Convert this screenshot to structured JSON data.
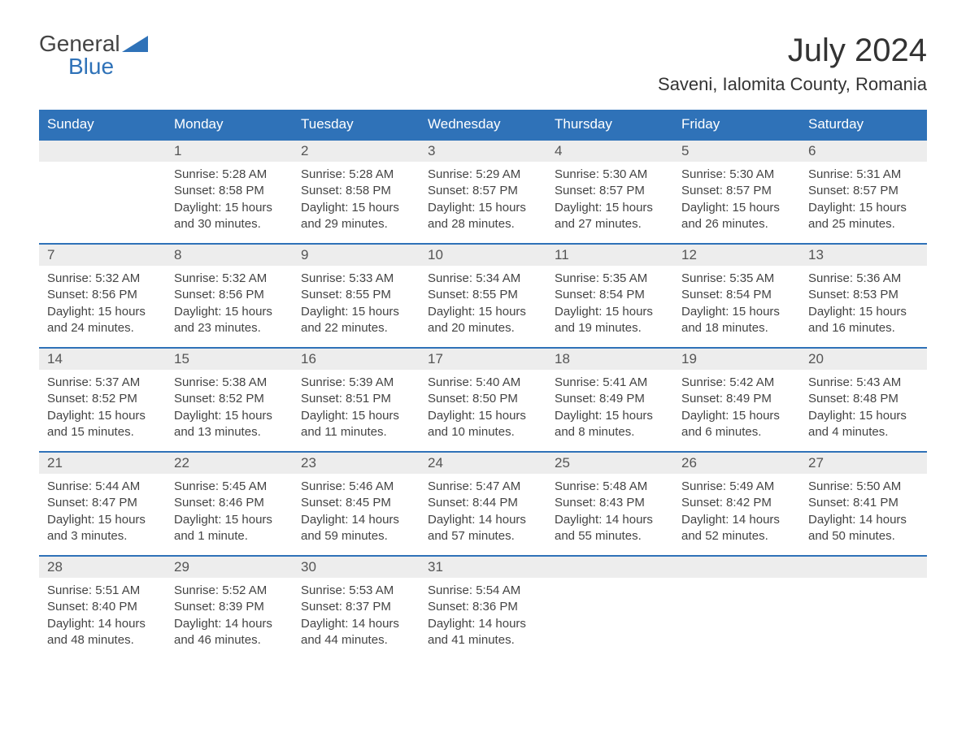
{
  "logo": {
    "line1": "General",
    "line2": "Blue"
  },
  "title": "July 2024",
  "location": "Saveni, Ialomita County, Romania",
  "colors": {
    "header_bg": "#2f72b8",
    "header_text": "#ffffff",
    "daynum_bg": "#ededed",
    "border_top": "#2f72b8",
    "text": "#444444",
    "logo_blue": "#2f72b8"
  },
  "weekdays": [
    "Sunday",
    "Monday",
    "Tuesday",
    "Wednesday",
    "Thursday",
    "Friday",
    "Saturday"
  ],
  "weeks": [
    [
      null,
      {
        "n": "1",
        "sr": "Sunrise: 5:28 AM",
        "ss": "Sunset: 8:58 PM",
        "d1": "Daylight: 15 hours",
        "d2": "and 30 minutes."
      },
      {
        "n": "2",
        "sr": "Sunrise: 5:28 AM",
        "ss": "Sunset: 8:58 PM",
        "d1": "Daylight: 15 hours",
        "d2": "and 29 minutes."
      },
      {
        "n": "3",
        "sr": "Sunrise: 5:29 AM",
        "ss": "Sunset: 8:57 PM",
        "d1": "Daylight: 15 hours",
        "d2": "and 28 minutes."
      },
      {
        "n": "4",
        "sr": "Sunrise: 5:30 AM",
        "ss": "Sunset: 8:57 PM",
        "d1": "Daylight: 15 hours",
        "d2": "and 27 minutes."
      },
      {
        "n": "5",
        "sr": "Sunrise: 5:30 AM",
        "ss": "Sunset: 8:57 PM",
        "d1": "Daylight: 15 hours",
        "d2": "and 26 minutes."
      },
      {
        "n": "6",
        "sr": "Sunrise: 5:31 AM",
        "ss": "Sunset: 8:57 PM",
        "d1": "Daylight: 15 hours",
        "d2": "and 25 minutes."
      }
    ],
    [
      {
        "n": "7",
        "sr": "Sunrise: 5:32 AM",
        "ss": "Sunset: 8:56 PM",
        "d1": "Daylight: 15 hours",
        "d2": "and 24 minutes."
      },
      {
        "n": "8",
        "sr": "Sunrise: 5:32 AM",
        "ss": "Sunset: 8:56 PM",
        "d1": "Daylight: 15 hours",
        "d2": "and 23 minutes."
      },
      {
        "n": "9",
        "sr": "Sunrise: 5:33 AM",
        "ss": "Sunset: 8:55 PM",
        "d1": "Daylight: 15 hours",
        "d2": "and 22 minutes."
      },
      {
        "n": "10",
        "sr": "Sunrise: 5:34 AM",
        "ss": "Sunset: 8:55 PM",
        "d1": "Daylight: 15 hours",
        "d2": "and 20 minutes."
      },
      {
        "n": "11",
        "sr": "Sunrise: 5:35 AM",
        "ss": "Sunset: 8:54 PM",
        "d1": "Daylight: 15 hours",
        "d2": "and 19 minutes."
      },
      {
        "n": "12",
        "sr": "Sunrise: 5:35 AM",
        "ss": "Sunset: 8:54 PM",
        "d1": "Daylight: 15 hours",
        "d2": "and 18 minutes."
      },
      {
        "n": "13",
        "sr": "Sunrise: 5:36 AM",
        "ss": "Sunset: 8:53 PM",
        "d1": "Daylight: 15 hours",
        "d2": "and 16 minutes."
      }
    ],
    [
      {
        "n": "14",
        "sr": "Sunrise: 5:37 AM",
        "ss": "Sunset: 8:52 PM",
        "d1": "Daylight: 15 hours",
        "d2": "and 15 minutes."
      },
      {
        "n": "15",
        "sr": "Sunrise: 5:38 AM",
        "ss": "Sunset: 8:52 PM",
        "d1": "Daylight: 15 hours",
        "d2": "and 13 minutes."
      },
      {
        "n": "16",
        "sr": "Sunrise: 5:39 AM",
        "ss": "Sunset: 8:51 PM",
        "d1": "Daylight: 15 hours",
        "d2": "and 11 minutes."
      },
      {
        "n": "17",
        "sr": "Sunrise: 5:40 AM",
        "ss": "Sunset: 8:50 PM",
        "d1": "Daylight: 15 hours",
        "d2": "and 10 minutes."
      },
      {
        "n": "18",
        "sr": "Sunrise: 5:41 AM",
        "ss": "Sunset: 8:49 PM",
        "d1": "Daylight: 15 hours",
        "d2": "and 8 minutes."
      },
      {
        "n": "19",
        "sr": "Sunrise: 5:42 AM",
        "ss": "Sunset: 8:49 PM",
        "d1": "Daylight: 15 hours",
        "d2": "and 6 minutes."
      },
      {
        "n": "20",
        "sr": "Sunrise: 5:43 AM",
        "ss": "Sunset: 8:48 PM",
        "d1": "Daylight: 15 hours",
        "d2": "and 4 minutes."
      }
    ],
    [
      {
        "n": "21",
        "sr": "Sunrise: 5:44 AM",
        "ss": "Sunset: 8:47 PM",
        "d1": "Daylight: 15 hours",
        "d2": "and 3 minutes."
      },
      {
        "n": "22",
        "sr": "Sunrise: 5:45 AM",
        "ss": "Sunset: 8:46 PM",
        "d1": "Daylight: 15 hours",
        "d2": "and 1 minute."
      },
      {
        "n": "23",
        "sr": "Sunrise: 5:46 AM",
        "ss": "Sunset: 8:45 PM",
        "d1": "Daylight: 14 hours",
        "d2": "and 59 minutes."
      },
      {
        "n": "24",
        "sr": "Sunrise: 5:47 AM",
        "ss": "Sunset: 8:44 PM",
        "d1": "Daylight: 14 hours",
        "d2": "and 57 minutes."
      },
      {
        "n": "25",
        "sr": "Sunrise: 5:48 AM",
        "ss": "Sunset: 8:43 PM",
        "d1": "Daylight: 14 hours",
        "d2": "and 55 minutes."
      },
      {
        "n": "26",
        "sr": "Sunrise: 5:49 AM",
        "ss": "Sunset: 8:42 PM",
        "d1": "Daylight: 14 hours",
        "d2": "and 52 minutes."
      },
      {
        "n": "27",
        "sr": "Sunrise: 5:50 AM",
        "ss": "Sunset: 8:41 PM",
        "d1": "Daylight: 14 hours",
        "d2": "and 50 minutes."
      }
    ],
    [
      {
        "n": "28",
        "sr": "Sunrise: 5:51 AM",
        "ss": "Sunset: 8:40 PM",
        "d1": "Daylight: 14 hours",
        "d2": "and 48 minutes."
      },
      {
        "n": "29",
        "sr": "Sunrise: 5:52 AM",
        "ss": "Sunset: 8:39 PM",
        "d1": "Daylight: 14 hours",
        "d2": "and 46 minutes."
      },
      {
        "n": "30",
        "sr": "Sunrise: 5:53 AM",
        "ss": "Sunset: 8:37 PM",
        "d1": "Daylight: 14 hours",
        "d2": "and 44 minutes."
      },
      {
        "n": "31",
        "sr": "Sunrise: 5:54 AM",
        "ss": "Sunset: 8:36 PM",
        "d1": "Daylight: 14 hours",
        "d2": "and 41 minutes."
      },
      null,
      null,
      null
    ]
  ]
}
